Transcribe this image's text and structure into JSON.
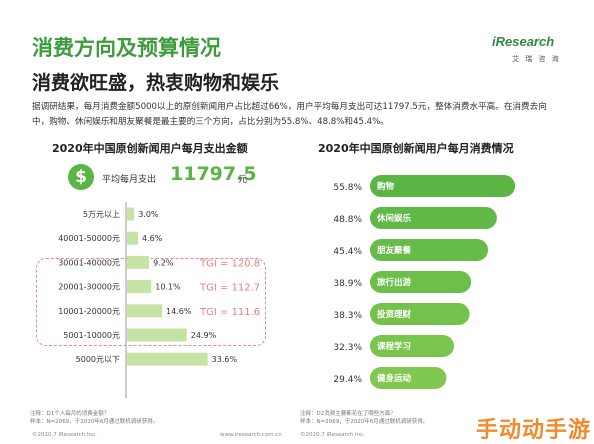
{
  "title": "消费方向及预算情况",
  "subtitle": "消费欲旺盛，热衷购物和娱乐",
  "logo": {
    "text": "iResearch",
    "sub": "艾 瑞 咨 询"
  },
  "intro": "据调研结果，每月消费金额5000以上的原创新闻用户占比超过66%，用户平均每月支出可达11797.5元，整体消费水平高。在消费去向中，购物、休闲娱乐和朋友聚餐是最主要的三个方向，占比分别为55.8%、48.8%和45.4%。",
  "avg": {
    "label": "平均每月支出",
    "value": "11797.5",
    "unit": "元",
    "symbol": "$"
  },
  "footnotes": {
    "left": "注释：D1个人每月的消费金额？\n样本：N=2069，于2020年6月通过联机调研获得。",
    "right": "注释：D2消费主要都花在了哪些方面？\n样本：N=2069，于2020年6月通过联机调研获得。"
  },
  "copyright": {
    "left": "©2020.7 iResearch Inc.",
    "web": "www.iresearch.com.cn",
    "right": "©2020.7 iResearch Inc."
  },
  "watermark": "手动动手游",
  "colors": {
    "green": "#5ab545",
    "light_green": "#c5e3a5",
    "tgi": "#e88080",
    "bar_dark": "#4caf50"
  },
  "chart_data": [
    {
      "type": "bar",
      "orientation": "horizontal",
      "title": "2020年中国原创新闻用户每月支出金额",
      "categories": [
        "5万元以上",
        "40001-50000元",
        "30001-40000元",
        "20001-30000元",
        "10001-20000元",
        "5001-10000元",
        "5000元以下"
      ],
      "values": [
        3.0,
        4.6,
        9.2,
        10.1,
        14.6,
        24.9,
        33.6
      ],
      "value_labels": [
        "3.0%",
        "4.6%",
        "9.2%",
        "10.1%",
        "14.6%",
        "24.9%",
        "33.6%"
      ],
      "annotations": [
        {
          "category": "30001-40000元",
          "text": "TGI = 120.8"
        },
        {
          "category": "20001-30000元",
          "text": "TGI = 112.7"
        },
        {
          "category": "10001-20000元",
          "text": "TGI = 111.6"
        }
      ],
      "grid": false
    },
    {
      "type": "bar",
      "orientation": "horizontal",
      "title": "2020年中国原创新闻用户每月消费情况",
      "categories": [
        "购物",
        "休闲娱乐",
        "朋友聚餐",
        "旅行出游",
        "投资理财",
        "课程学习",
        "健身运动"
      ],
      "values": [
        55.8,
        48.8,
        45.4,
        38.9,
        38.3,
        32.3,
        29.4
      ],
      "value_labels": [
        "55.8%",
        "48.8%",
        "45.4%",
        "38.9%",
        "38.3%",
        "32.3%",
        "29.4%"
      ],
      "grid": false
    }
  ]
}
